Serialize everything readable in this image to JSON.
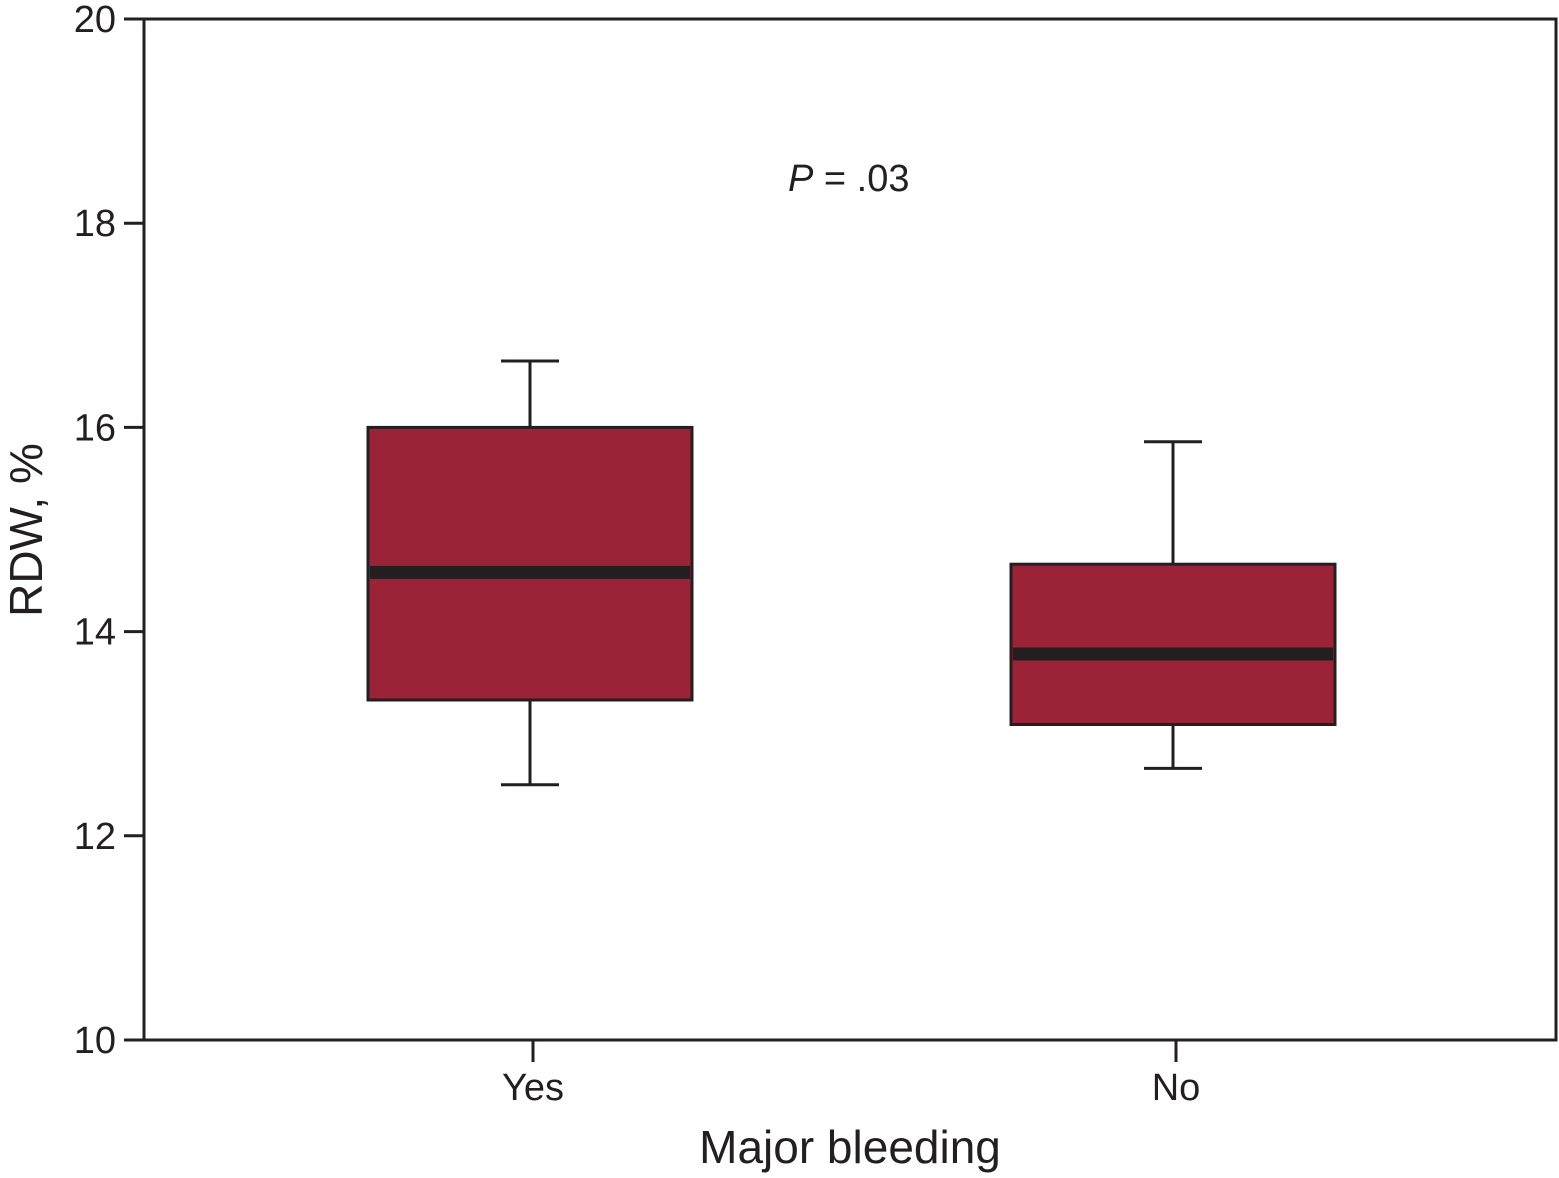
{
  "chart_data": {
    "type": "boxplot",
    "title": "",
    "xlabel": "Major bleeding",
    "ylabel": "RDW, %",
    "ylim": [
      10,
      20
    ],
    "yticks": [
      10,
      12,
      14,
      16,
      18,
      20
    ],
    "categories": [
      "Yes",
      "No"
    ],
    "boxes": [
      {
        "category": "Yes",
        "whisker_low": 12.5,
        "q1": 13.33,
        "median": 14.58,
        "q3": 16.0,
        "whisker_high": 16.65
      },
      {
        "category": "No",
        "whisker_low": 12.66,
        "q1": 13.09,
        "median": 13.78,
        "q3": 14.66,
        "whisker_high": 15.86
      }
    ],
    "annotation": {
      "p_symbol": "P",
      "p_text": " = .03"
    },
    "grid": false,
    "colors": {
      "box_fill": "#9b2338",
      "line": "#231f20"
    }
  }
}
